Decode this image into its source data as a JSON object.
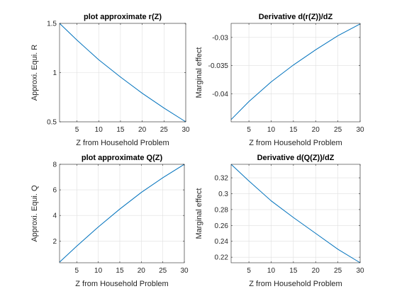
{
  "chart_data": [
    {
      "type": "line",
      "title": "plot approximate r(Z)",
      "xlabel": "Z from Household Problem",
      "ylabel": "Approxi. Equi. R",
      "xlim": [
        1,
        30
      ],
      "ylim": [
        0.5,
        1.5
      ],
      "xticks": [
        5,
        10,
        15,
        20,
        25,
        30
      ],
      "xtick_labels": [
        "5",
        "10",
        "15",
        "20",
        "25",
        "30"
      ],
      "yticks": [
        0.5,
        1,
        1.5
      ],
      "ytick_labels": [
        "0.5",
        "1",
        "1.5"
      ],
      "grid": true,
      "color": "#0072bd",
      "series": [
        {
          "x": [
            1,
            5,
            10,
            15,
            20,
            25,
            30
          ],
          "y": [
            1.5,
            1.33,
            1.13,
            0.955,
            0.79,
            0.64,
            0.5
          ]
        }
      ]
    },
    {
      "type": "line",
      "title": "Derivative d(r(Z))/dZ",
      "xlabel": "Z from Household Problem",
      "ylabel": "Marginal effect",
      "xlim": [
        1,
        30
      ],
      "ylim": [
        -0.045,
        -0.0275
      ],
      "xticks": [
        5,
        10,
        15,
        20,
        25,
        30
      ],
      "xtick_labels": [
        "5",
        "10",
        "15",
        "20",
        "25",
        "30"
      ],
      "yticks": [
        -0.04,
        -0.035,
        -0.03
      ],
      "ytick_labels": [
        "-0.04",
        "-0.035",
        "-0.03"
      ],
      "grid": true,
      "color": "#0072bd",
      "series": [
        {
          "x": [
            1,
            5,
            10,
            15,
            20,
            25,
            30
          ],
          "y": [
            -0.0446,
            -0.0414,
            -0.0379,
            -0.0349,
            -0.0322,
            -0.0297,
            -0.0276
          ]
        }
      ]
    },
    {
      "type": "line",
      "title": "plot approximate Q(Z)",
      "xlabel": "Z from Household Problem",
      "ylabel": "Approxi. Equi. Q",
      "xlim": [
        1,
        30
      ],
      "ylim": [
        0.3,
        8
      ],
      "xticks": [
        5,
        10,
        15,
        20,
        25,
        30
      ],
      "xtick_labels": [
        "5",
        "10",
        "15",
        "20",
        "25",
        "30"
      ],
      "yticks": [
        2,
        4,
        6,
        8
      ],
      "ytick_labels": [
        "2",
        "4",
        "6",
        "8"
      ],
      "grid": true,
      "color": "#0072bd",
      "series": [
        {
          "x": [
            1,
            5,
            10,
            15,
            20,
            25,
            30
          ],
          "y": [
            0.35,
            1.6,
            3.1,
            4.5,
            5.8,
            6.95,
            8.0
          ]
        }
      ]
    },
    {
      "type": "line",
      "title": "Derivative d(Q(Z))/dZ",
      "xlabel": "Z from Household Problem",
      "ylabel": "Marginal effect",
      "xlim": [
        1,
        30
      ],
      "ylim": [
        0.213,
        0.337
      ],
      "xticks": [
        5,
        10,
        15,
        20,
        25,
        30
      ],
      "xtick_labels": [
        "5",
        "10",
        "15",
        "20",
        "25",
        "30"
      ],
      "yticks": [
        0.22,
        0.24,
        0.26,
        0.28,
        0.3,
        0.32
      ],
      "ytick_labels": [
        "0.22",
        "0.24",
        "0.26",
        "0.28",
        "0.3",
        "0.32"
      ],
      "grid": true,
      "color": "#0072bd",
      "series": [
        {
          "x": [
            1,
            5,
            10,
            15,
            20,
            25,
            30
          ],
          "y": [
            0.337,
            0.316,
            0.291,
            0.27,
            0.25,
            0.23,
            0.213
          ]
        }
      ]
    }
  ]
}
